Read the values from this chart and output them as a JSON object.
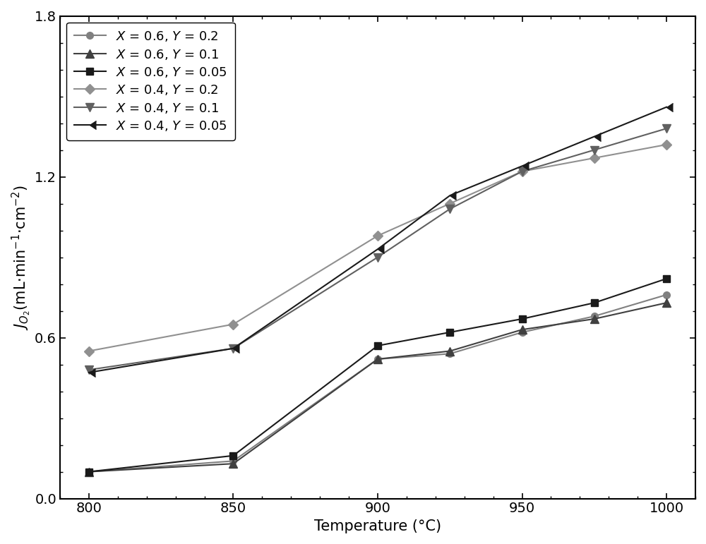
{
  "title": "",
  "xlabel": "Temperature (°C)",
  "ylabel": "$J_{O_2}$(mL·min$^{-1}$·cm$^{-2}$)",
  "xlim": [
    790,
    1010
  ],
  "ylim": [
    0.0,
    1.8
  ],
  "xticks": [
    800,
    850,
    900,
    950,
    1000
  ],
  "yticks": [
    0.0,
    0.6,
    1.2,
    1.8
  ],
  "series": [
    {
      "label": "$X$ = 0.6, $Y$ = 0.2",
      "x": [
        800,
        850,
        900,
        925,
        950,
        975,
        1000
      ],
      "y": [
        0.1,
        0.14,
        0.52,
        0.54,
        0.62,
        0.68,
        0.76
      ],
      "color": "#808080",
      "marker": "o",
      "markersize": 7,
      "linewidth": 1.5,
      "zorder": 3
    },
    {
      "label": "$X$ = 0.6, $Y$ = 0.1",
      "x": [
        800,
        850,
        900,
        925,
        950,
        975,
        1000
      ],
      "y": [
        0.1,
        0.13,
        0.52,
        0.55,
        0.63,
        0.67,
        0.73
      ],
      "color": "#404040",
      "marker": "^",
      "markersize": 8,
      "linewidth": 1.5,
      "zorder": 3
    },
    {
      "label": "$X$ = 0.6, $Y$ = 0.05",
      "x": [
        800,
        850,
        900,
        925,
        950,
        975,
        1000
      ],
      "y": [
        0.1,
        0.16,
        0.57,
        0.62,
        0.67,
        0.73,
        0.82
      ],
      "color": "#1a1a1a",
      "marker": "s",
      "markersize": 7,
      "linewidth": 1.5,
      "zorder": 3
    },
    {
      "label": "$X$ = 0.4, $Y$ = 0.2",
      "x": [
        800,
        850,
        900,
        925,
        950,
        975,
        1000
      ],
      "y": [
        0.55,
        0.65,
        0.98,
        1.1,
        1.22,
        1.27,
        1.32
      ],
      "color": "#909090",
      "marker": "D",
      "markersize": 7,
      "linewidth": 1.5,
      "zorder": 3
    },
    {
      "label": "$X$ = 0.4, $Y$ = 0.1",
      "x": [
        800,
        850,
        900,
        925,
        950,
        975,
        1000
      ],
      "y": [
        0.48,
        0.56,
        0.9,
        1.08,
        1.22,
        1.3,
        1.38
      ],
      "color": "#606060",
      "marker": "v",
      "markersize": 8,
      "linewidth": 1.5,
      "zorder": 3
    },
    {
      "label": "$X$ = 0.4, $Y$ = 0.05",
      "x": [
        800,
        850,
        900,
        925,
        950,
        975,
        1000
      ],
      "y": [
        0.47,
        0.56,
        0.93,
        1.13,
        1.24,
        1.35,
        1.46
      ],
      "color": "#1a1a1a",
      "marker": 4,
      "markersize": 9,
      "linewidth": 1.5,
      "zorder": 3
    }
  ],
  "legend_loc": "upper left",
  "legend_fontsize": 13,
  "tick_fontsize": 14,
  "label_fontsize": 15,
  "background_color": "#ffffff"
}
